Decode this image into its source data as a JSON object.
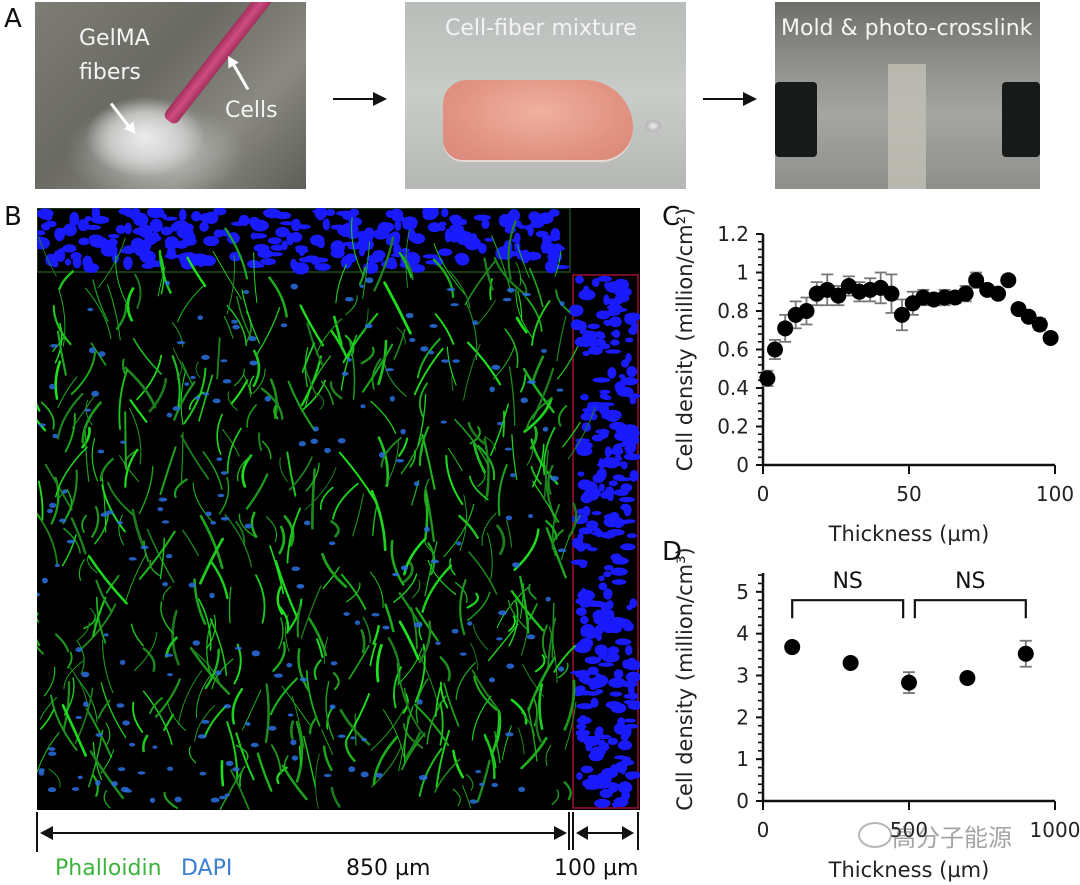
{
  "panel_labels": {
    "a": "A",
    "b": "B",
    "c": "C",
    "d": "D"
  },
  "panel_a": {
    "step1": {
      "caption_fibers": "GelMA\nfibers",
      "caption_fibers_line1": "GelMA",
      "caption_fibers_line2": "fibers",
      "caption_cells": "Cells"
    },
    "step2": {
      "caption": "Cell-fiber mixture"
    },
    "step3": {
      "caption": "Mold & photo-crosslink"
    },
    "colors": {
      "pipette": "#c8457a",
      "mixture": "#e59a8a"
    }
  },
  "panel_b": {
    "stain_phalloidin": "Phalloidin",
    "stain_dapi": "DAPI",
    "scale_main": "850 µm",
    "scale_side": "100 µm",
    "colors": {
      "phalloidin": "#3cb43c",
      "dapi": "#3a7fd0",
      "nuclei": "#1a1aff",
      "actin": "#22d022",
      "side_border": "#a01030",
      "top_border": "#1f4a1f"
    }
  },
  "watermark": {
    "text": "高分子能源",
    "icon": "wechat-icon"
  },
  "chart_data": [
    {
      "id": "C",
      "type": "scatter",
      "title": "",
      "xlabel": "Thickness (µm)",
      "ylabel": "Cell density (million/cm²)",
      "xlim": [
        0,
        100
      ],
      "ylim": [
        0,
        1.2
      ],
      "xticks": [
        0,
        50,
        100
      ],
      "yticks": [
        0,
        0.2,
        0.4,
        0.6,
        0.8,
        1,
        1.2
      ],
      "ytick_labels": [
        "0",
        "0.2",
        "0.4",
        "0.6",
        "0.8",
        "1",
        "1.2"
      ],
      "grid": false,
      "legend": null,
      "x": [
        1.5,
        4.1,
        7.6,
        11.2,
        14.9,
        18.4,
        22.0,
        25.8,
        29.4,
        33.0,
        36.7,
        40.3,
        44.0,
        47.6,
        51.3,
        54.9,
        58.5,
        62.2,
        65.8,
        69.4,
        73.0,
        76.8,
        80.5,
        84.0,
        87.5,
        91.0,
        94.8,
        98.5
      ],
      "y": [
        0.45,
        0.6,
        0.71,
        0.78,
        0.8,
        0.89,
        0.91,
        0.88,
        0.93,
        0.9,
        0.91,
        0.92,
        0.89,
        0.78,
        0.84,
        0.87,
        0.86,
        0.87,
        0.87,
        0.89,
        0.96,
        0.91,
        0.89,
        0.96,
        0.81,
        0.77,
        0.73,
        0.66
      ],
      "yerr": [
        0.04,
        0.05,
        0.07,
        0.07,
        0.07,
        0.06,
        0.08,
        0.05,
        0.05,
        0.05,
        0.06,
        0.08,
        0.1,
        0.08,
        0.06,
        0.04,
        0.02,
        0.04,
        0.03,
        0.04,
        0.04,
        0.02,
        0.02,
        0.01,
        0.02,
        0.02,
        0.03,
        0.02
      ]
    },
    {
      "id": "D",
      "type": "scatter",
      "title": "",
      "xlabel": "Thickness (µm)",
      "ylabel": "Cell density (million/cm³)",
      "xlim": [
        0,
        1000
      ],
      "ylim": [
        0,
        5.5
      ],
      "xticks": [
        0,
        500,
        1000
      ],
      "xtick_labels": [
        "0",
        "500",
        "1000"
      ],
      "yticks": [
        0,
        1,
        2,
        3,
        4,
        5
      ],
      "grid": false,
      "legend": null,
      "x": [
        100,
        300,
        500,
        700,
        900
      ],
      "y": [
        3.68,
        3.3,
        2.83,
        2.94,
        3.52
      ],
      "yerr": [
        0.12,
        0.08,
        0.25,
        0.06,
        0.31
      ],
      "annotations": [
        {
          "text": "NS",
          "bracket": [
            100,
            480
          ],
          "y": 4.8
        },
        {
          "text": "NS",
          "bracket": [
            520,
            900
          ],
          "y": 4.8
        }
      ]
    }
  ]
}
